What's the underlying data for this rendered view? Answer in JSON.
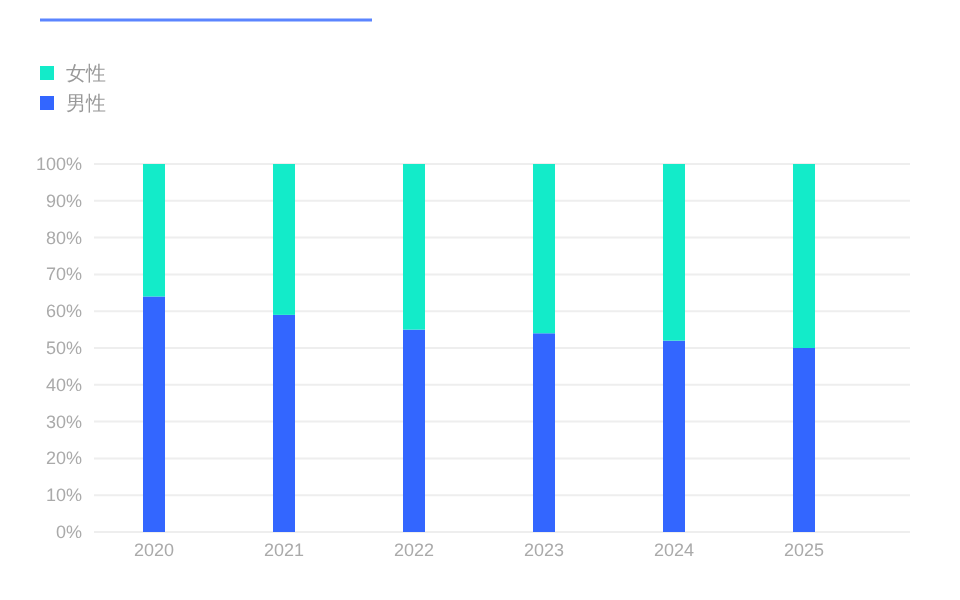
{
  "chart_data": {
    "type": "bar",
    "stacked": true,
    "categories": [
      "2020",
      "2021",
      "2022",
      "2023",
      "2024",
      "2025"
    ],
    "series": [
      {
        "name": "男性",
        "color": "#3366ff",
        "values": [
          64,
          59,
          55,
          54,
          52,
          50
        ]
      },
      {
        "name": "女性",
        "color": "#13ebc9",
        "values": [
          36,
          41,
          45,
          46,
          48,
          50
        ]
      }
    ],
    "ylim": [
      0,
      100
    ],
    "yticks": [
      {
        "value": 0,
        "label": "0%"
      },
      {
        "value": 10,
        "label": "10%"
      },
      {
        "value": 20,
        "label": "20%"
      },
      {
        "value": 30,
        "label": "30%"
      },
      {
        "value": 40,
        "label": "40%"
      },
      {
        "value": 50,
        "label": "50%"
      },
      {
        "value": 60,
        "label": "60%"
      },
      {
        "value": 70,
        "label": "70%"
      },
      {
        "value": 80,
        "label": "80%"
      },
      {
        "value": 90,
        "label": "90%"
      },
      {
        "value": 100,
        "label": "100%"
      }
    ],
    "grid": "y",
    "legend": "top left"
  }
}
